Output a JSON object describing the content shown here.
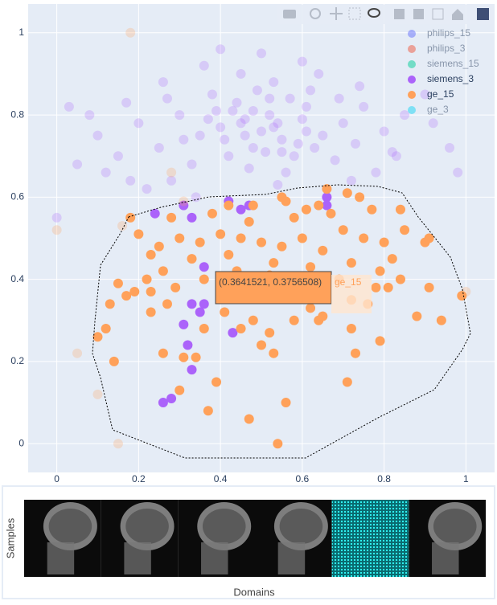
{
  "chart_data": {
    "type": "scatter",
    "xlim": [
      -0.07,
      1.07
    ],
    "ylim": [
      -0.07,
      1.07
    ],
    "xticks": [
      0,
      0.2,
      0.4,
      0.6,
      0.8,
      1
    ],
    "yticks": [
      0,
      0.2,
      0.4,
      0.6,
      0.8,
      1
    ],
    "grid": true,
    "legend": "top-right",
    "tooltip": {
      "text": "(0.3641521, 0.3756508)",
      "name": "ge_15"
    },
    "series": [
      {
        "name": "philips_15",
        "color": "#636efa",
        "visible": "legendonly",
        "x": [],
        "y": []
      },
      {
        "name": "philips_3",
        "color": "#ef553b",
        "visible": "legendonly",
        "x": [],
        "y": []
      },
      {
        "name": "siemens_15",
        "color": "#00cc96",
        "visible": "legendonly",
        "x": [],
        "y": []
      },
      {
        "name": "siemens_3",
        "color": "#ab63fa",
        "visible": true,
        "x": [
          0.5,
          0.45,
          0.55,
          0.52,
          0.48,
          0.4,
          0.6,
          0.58,
          0.42,
          0.35,
          0.65,
          0.3,
          0.7,
          0.25,
          0.75,
          0.38,
          0.62,
          0.53,
          0.47,
          0.56,
          0.44,
          0.33,
          0.68,
          0.2,
          0.8,
          0.15,
          0.85,
          0.28,
          0.72,
          0.5,
          0.4,
          0.6,
          0.45,
          0.36,
          0.64,
          0.1,
          0.9,
          0.05,
          0.22,
          0.78,
          0.12,
          0.34,
          0.66,
          0.57,
          0.49,
          0.41,
          0.59,
          0.53,
          0.46,
          0.51,
          0.55,
          0.43,
          0.61,
          0.37,
          0.63,
          0.27,
          0.73,
          0.17,
          0.83,
          0.08,
          0.92,
          0.0,
          0.96,
          0.52,
          0.48,
          0.54,
          0.46,
          0.39,
          0.61,
          0.31,
          0.69,
          0.26,
          0.74,
          0.18,
          0.82,
          0.03,
          0.98,
          0.54,
          0.31,
          0.24,
          0.66,
          0.31,
          0.33,
          0.36,
          0.35,
          0.32,
          0.33,
          0.26,
          0.28,
          0.43,
          0.42,
          0.45,
          0.47,
          0.33,
          0.36
        ],
        "y": [
          0.76,
          0.78,
          0.74,
          0.8,
          0.72,
          0.77,
          0.79,
          0.7,
          0.7,
          0.75,
          0.75,
          0.8,
          0.78,
          0.72,
          0.82,
          0.85,
          0.86,
          0.88,
          0.67,
          0.66,
          0.83,
          0.68,
          0.69,
          0.78,
          0.76,
          0.7,
          0.8,
          0.64,
          0.64,
          0.95,
          0.96,
          0.93,
          0.9,
          0.92,
          0.9,
          0.75,
          0.85,
          0.68,
          0.62,
          0.66,
          0.66,
          0.6,
          0.6,
          0.84,
          0.86,
          0.74,
          0.73,
          0.77,
          0.79,
          0.71,
          0.71,
          0.81,
          0.82,
          0.79,
          0.72,
          0.84,
          0.73,
          0.83,
          0.7,
          0.8,
          0.78,
          0.55,
          0.72,
          0.84,
          0.81,
          0.78,
          0.75,
          0.81,
          0.76,
          0.74,
          0.84,
          0.88,
          0.87,
          0.64,
          0.71,
          0.82,
          0.66,
          0.63,
          0.58,
          0.56,
          0.58,
          0.29,
          0.34,
          0.34,
          0.32,
          0.24,
          0.18,
          0.1,
          0.11,
          0.27,
          0.59,
          0.57,
          0.58,
          0.55,
          0.43
        ]
      },
      {
        "name": "ge_15",
        "color": "#ffa15a",
        "visible": true,
        "x": [
          0.5,
          0.45,
          0.55,
          0.4,
          0.6,
          0.35,
          0.65,
          0.3,
          0.7,
          0.25,
          0.75,
          0.2,
          0.8,
          0.47,
          0.53,
          0.42,
          0.58,
          0.38,
          0.62,
          0.33,
          0.67,
          0.28,
          0.72,
          0.23,
          0.77,
          0.48,
          0.52,
          0.44,
          0.56,
          0.36,
          0.64,
          0.31,
          0.69,
          0.26,
          0.74,
          0.18,
          0.82,
          0.16,
          0.85,
          0.9,
          0.22,
          0.78,
          0.19,
          0.17,
          0.23,
          0.27,
          0.15,
          0.13,
          0.12,
          0.1,
          0.14,
          0.26,
          0.3,
          0.31,
          0.34,
          0.39,
          0.37,
          0.47,
          0.54,
          0.56,
          0.53,
          0.5,
          0.45,
          0.48,
          0.58,
          0.62,
          0.65,
          0.72,
          0.72,
          0.76,
          0.81,
          0.79,
          0.84,
          0.88,
          0.94,
          0.91,
          0.71,
          0.73,
          0.79,
          0.61,
          0.57,
          0.6,
          0.64,
          0.52,
          0.36,
          0.41,
          0.29,
          0.23,
          0.42,
          0.55,
          0.66,
          0.71,
          0.84,
          0.91,
          0.18,
          0.0,
          0.05,
          0.1,
          0.15,
          1.0,
          0.99,
          0.28
        ],
        "y": [
          0.49,
          0.5,
          0.48,
          0.51,
          0.5,
          0.49,
          0.47,
          0.5,
          0.52,
          0.48,
          0.5,
          0.51,
          0.49,
          0.54,
          0.44,
          0.46,
          0.55,
          0.56,
          0.43,
          0.45,
          0.56,
          0.55,
          0.44,
          0.46,
          0.57,
          0.58,
          0.41,
          0.42,
          0.59,
          0.4,
          0.58,
          0.59,
          0.4,
          0.42,
          0.6,
          0.55,
          0.45,
          0.53,
          0.52,
          0.49,
          0.4,
          0.38,
          0.37,
          0.36,
          0.32,
          0.34,
          0.39,
          0.34,
          0.28,
          0.26,
          0.2,
          0.22,
          0.13,
          0.21,
          0.21,
          0.15,
          0.08,
          0.06,
          0.0,
          0.1,
          0.22,
          0.24,
          0.28,
          0.3,
          0.3,
          0.33,
          0.31,
          0.28,
          0.35,
          0.34,
          0.38,
          0.42,
          0.4,
          0.31,
          0.3,
          0.38,
          0.15,
          0.22,
          0.25,
          0.57,
          0.36,
          0.37,
          0.3,
          0.27,
          0.28,
          0.32,
          0.38,
          0.37,
          0.58,
          0.6,
          0.62,
          0.61,
          0.57,
          0.5,
          1.0,
          0.52,
          0.22,
          0.12,
          0.0,
          0.37,
          0.36,
          0.66
        ]
      },
      {
        "name": "ge_3",
        "color": "#19d3f3",
        "visible": "legendonly",
        "x": [],
        "y": []
      }
    ]
  },
  "image_panel": {
    "y_label": "Samples",
    "x_label": "Domains"
  }
}
